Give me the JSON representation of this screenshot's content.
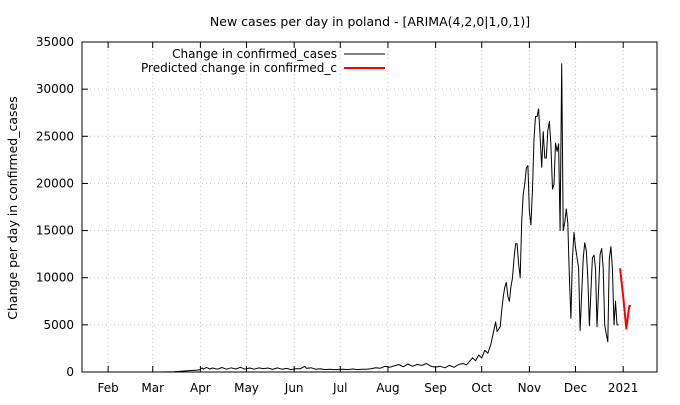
{
  "chart_data": {
    "type": "line",
    "title": "New cases per day in poland -  [ARIMA(4,2,0|1,0,1)]",
    "xlabel": "",
    "ylabel": "Change per day in confirmed_cases",
    "ylim": [
      0,
      35000
    ],
    "y_ticks": [
      0,
      5000,
      10000,
      15000,
      20000,
      25000,
      30000,
      35000
    ],
    "x_ticks": [
      {
        "label": "Feb",
        "date": "2020-02-01"
      },
      {
        "label": "Mar",
        "date": "2020-03-01"
      },
      {
        "label": "Apr",
        "date": "2020-04-01"
      },
      {
        "label": "May",
        "date": "2020-05-01"
      },
      {
        "label": "Jun",
        "date": "2020-06-01"
      },
      {
        "label": "Jul",
        "date": "2020-07-01"
      },
      {
        "label": "Aug",
        "date": "2020-08-01"
      },
      {
        "label": "Sep",
        "date": "2020-09-01"
      },
      {
        "label": "Oct",
        "date": "2020-10-01"
      },
      {
        "label": "Nov",
        "date": "2020-11-01"
      },
      {
        "label": "Dec",
        "date": "2020-12-01"
      },
      {
        "label": "2021",
        "date": "2021-01-01"
      }
    ],
    "xlim": [
      "2020-01-15",
      "2021-01-23"
    ],
    "grid": true,
    "legend_position": "top-left",
    "series": [
      {
        "name": "Change in confirmed_cases",
        "color": "#000000",
        "points": [
          [
            "2020-03-04",
            0
          ],
          [
            "2020-03-15",
            30
          ],
          [
            "2020-03-25",
            150
          ],
          [
            "2020-03-30",
            200
          ],
          [
            "2020-04-01",
            250
          ],
          [
            "2020-04-02",
            450
          ],
          [
            "2020-04-03",
            300
          ],
          [
            "2020-04-05",
            500
          ],
          [
            "2020-04-07",
            320
          ],
          [
            "2020-04-09",
            420
          ],
          [
            "2020-04-12",
            300
          ],
          [
            "2020-04-15",
            480
          ],
          [
            "2020-04-18",
            300
          ],
          [
            "2020-04-21",
            450
          ],
          [
            "2020-04-24",
            320
          ],
          [
            "2020-04-27",
            500
          ],
          [
            "2020-04-30",
            300
          ],
          [
            "2020-05-03",
            420
          ],
          [
            "2020-05-06",
            300
          ],
          [
            "2020-05-09",
            440
          ],
          [
            "2020-05-12",
            360
          ],
          [
            "2020-05-15",
            420
          ],
          [
            "2020-05-18",
            280
          ],
          [
            "2020-05-21",
            430
          ],
          [
            "2020-05-24",
            300
          ],
          [
            "2020-05-27",
            380
          ],
          [
            "2020-05-30",
            250
          ],
          [
            "2020-06-02",
            350
          ],
          [
            "2020-06-05",
            350
          ],
          [
            "2020-06-08",
            600
          ],
          [
            "2020-06-09",
            380
          ],
          [
            "2020-06-12",
            450
          ],
          [
            "2020-06-15",
            300
          ],
          [
            "2020-06-18",
            350
          ],
          [
            "2020-06-21",
            250
          ],
          [
            "2020-06-24",
            300
          ],
          [
            "2020-06-27",
            250
          ],
          [
            "2020-06-30",
            280
          ],
          [
            "2020-07-03",
            300
          ],
          [
            "2020-07-06",
            250
          ],
          [
            "2020-07-09",
            320
          ],
          [
            "2020-07-12",
            250
          ],
          [
            "2020-07-15",
            300
          ],
          [
            "2020-07-18",
            300
          ],
          [
            "2020-07-21",
            350
          ],
          [
            "2020-07-24",
            450
          ],
          [
            "2020-07-27",
            400
          ],
          [
            "2020-07-30",
            600
          ],
          [
            "2020-08-02",
            500
          ],
          [
            "2020-08-05",
            650
          ],
          [
            "2020-08-08",
            800
          ],
          [
            "2020-08-11",
            550
          ],
          [
            "2020-08-14",
            850
          ],
          [
            "2020-08-17",
            600
          ],
          [
            "2020-08-20",
            800
          ],
          [
            "2020-08-23",
            700
          ],
          [
            "2020-08-26",
            900
          ],
          [
            "2020-08-29",
            600
          ],
          [
            "2020-09-01",
            500
          ],
          [
            "2020-09-04",
            600
          ],
          [
            "2020-09-07",
            450
          ],
          [
            "2020-09-10",
            700
          ],
          [
            "2020-09-13",
            500
          ],
          [
            "2020-09-16",
            800
          ],
          [
            "2020-09-19",
            900
          ],
          [
            "2020-09-21",
            750
          ],
          [
            "2020-09-23",
            1100
          ],
          [
            "2020-09-25",
            1500
          ],
          [
            "2020-09-27",
            1200
          ],
          [
            "2020-09-29",
            1800
          ],
          [
            "2020-10-01",
            1500
          ],
          [
            "2020-10-03",
            2300
          ],
          [
            "2020-10-05",
            2000
          ],
          [
            "2020-10-07",
            3000
          ],
          [
            "2020-10-09",
            4500
          ],
          [
            "2020-10-10",
            5300
          ],
          [
            "2020-10-11",
            4300
          ],
          [
            "2020-10-13",
            4800
          ],
          [
            "2020-10-14",
            6500
          ],
          [
            "2020-10-15",
            8000
          ],
          [
            "2020-10-16",
            9000
          ],
          [
            "2020-10-17",
            9500
          ],
          [
            "2020-10-18",
            8000
          ],
          [
            "2020-10-19",
            7500
          ],
          [
            "2020-10-20",
            9000
          ],
          [
            "2020-10-21",
            10000
          ],
          [
            "2020-10-22",
            12000
          ],
          [
            "2020-10-23",
            13600
          ],
          [
            "2020-10-24",
            13600
          ],
          [
            "2020-10-25",
            11500
          ],
          [
            "2020-10-26",
            10000
          ],
          [
            "2020-10-27",
            16000
          ],
          [
            "2020-10-28",
            18800
          ],
          [
            "2020-10-29",
            20000
          ],
          [
            "2020-10-30",
            21600
          ],
          [
            "2020-10-31",
            21900
          ],
          [
            "2020-11-01",
            17000
          ],
          [
            "2020-11-02",
            15600
          ],
          [
            "2020-11-03",
            19400
          ],
          [
            "2020-11-04",
            24700
          ],
          [
            "2020-11-05",
            27100
          ],
          [
            "2020-11-06",
            27100
          ],
          [
            "2020-11-07",
            27900
          ],
          [
            "2020-11-08",
            24800
          ],
          [
            "2020-11-09",
            21700
          ],
          [
            "2020-11-10",
            25500
          ],
          [
            "2020-11-11",
            22700
          ],
          [
            "2020-11-12",
            22700
          ],
          [
            "2020-11-13",
            25600
          ],
          [
            "2020-11-14",
            26600
          ],
          [
            "2020-11-15",
            24100
          ],
          [
            "2020-11-16",
            19400
          ],
          [
            "2020-11-17",
            19900
          ],
          [
            "2020-11-18",
            24300
          ],
          [
            "2020-11-19",
            23400
          ],
          [
            "2020-11-20",
            24200
          ],
          [
            "2020-11-21",
            15000
          ],
          [
            "2020-11-22",
            32700
          ],
          [
            "2020-11-23",
            15000
          ],
          [
            "2020-11-24",
            15900
          ],
          [
            "2020-11-25",
            17300
          ],
          [
            "2020-11-26",
            15800
          ],
          [
            "2020-11-27",
            10000
          ],
          [
            "2020-11-28",
            5700
          ],
          [
            "2020-11-29",
            12000
          ],
          [
            "2020-11-30",
            14800
          ],
          [
            "2020-12-01",
            13200
          ],
          [
            "2020-12-02",
            12100
          ],
          [
            "2020-12-03",
            11000
          ],
          [
            "2020-12-04",
            4400
          ],
          [
            "2020-12-06",
            12000
          ],
          [
            "2020-12-07",
            13700
          ],
          [
            "2020-12-08",
            12900
          ],
          [
            "2020-12-09",
            10000
          ],
          [
            "2020-12-10",
            4900
          ],
          [
            "2020-12-12",
            12100
          ],
          [
            "2020-12-13",
            12400
          ],
          [
            "2020-12-14",
            11000
          ],
          [
            "2020-12-15",
            4800
          ],
          [
            "2020-12-17",
            12500
          ],
          [
            "2020-12-18",
            13100
          ],
          [
            "2020-12-19",
            11000
          ],
          [
            "2020-12-20",
            5000
          ],
          [
            "2020-12-21",
            4000
          ],
          [
            "2020-12-22",
            3200
          ],
          [
            "2020-12-23",
            12000
          ],
          [
            "2020-12-24",
            13300
          ],
          [
            "2020-12-25",
            11000
          ],
          [
            "2020-12-26",
            5000
          ],
          [
            "2020-12-27",
            7500
          ],
          [
            "2020-12-28",
            5000
          ],
          [
            "2020-12-29",
            5000
          ]
        ]
      },
      {
        "name": "Predicted change in confirmed_c",
        "color": "#ff0000",
        "points": [
          [
            "2020-12-30",
            11000
          ],
          [
            "2021-01-01",
            8000
          ],
          [
            "2021-01-03",
            4600
          ],
          [
            "2021-01-05",
            7000
          ],
          [
            "2021-01-06",
            7000
          ]
        ]
      }
    ]
  }
}
